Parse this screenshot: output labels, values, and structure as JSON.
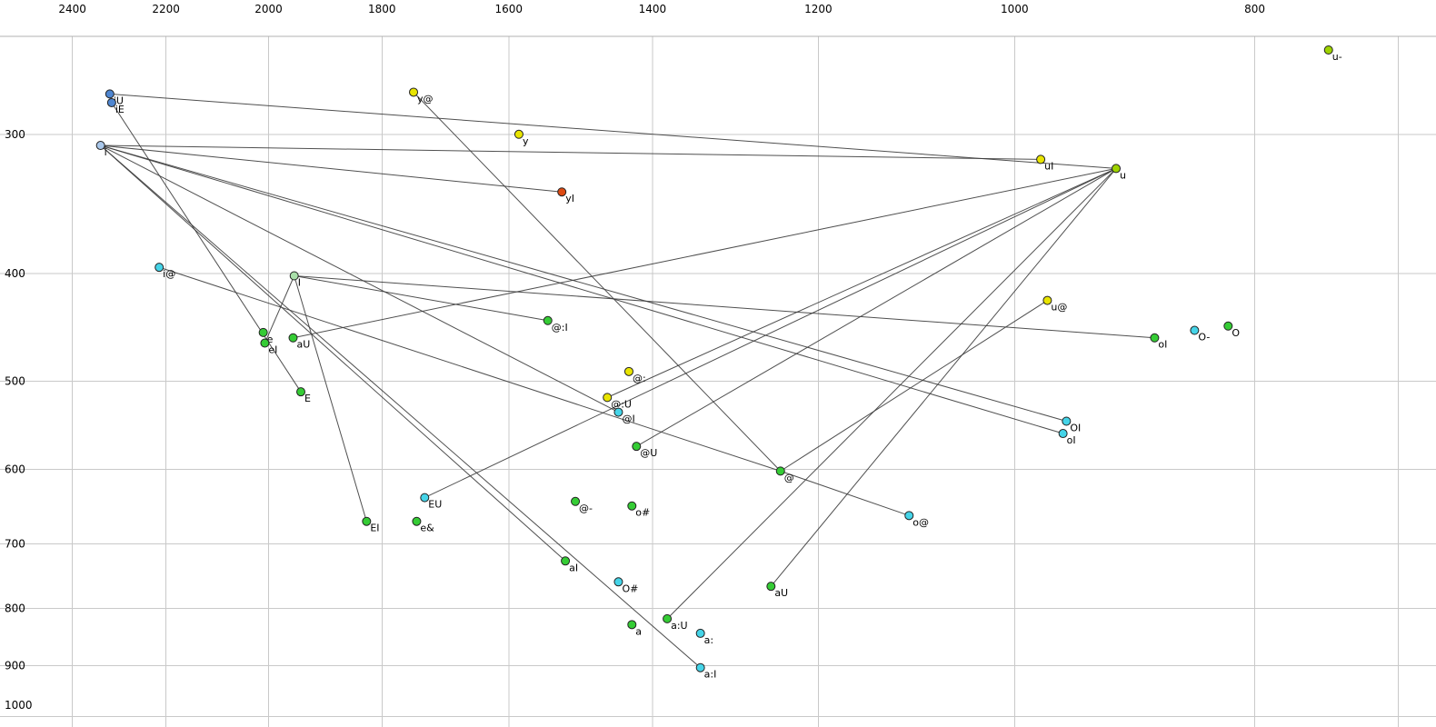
{
  "chart_data": {
    "type": "scatter",
    "title": "",
    "x_axis": {
      "tick_labels": [
        "2400",
        "2200",
        "2000",
        "1800",
        "1600",
        "1400",
        "1200",
        "1000",
        "800"
      ],
      "tick_values": [
        2400,
        2200,
        2000,
        1800,
        1600,
        1400,
        1200,
        1000,
        800
      ],
      "minor_tick_values": [
        700
      ],
      "min": 676,
      "max": 2567,
      "scale": "log",
      "direction": "decreasing-rightward"
    },
    "y_axis": {
      "tick_labels": [
        "300",
        "400",
        "500",
        "600",
        "700",
        "800",
        "900",
        "1000"
      ],
      "tick_values": [
        300,
        400,
        500,
        600,
        700,
        800,
        900,
        1000
      ],
      "min": 245,
      "max": 1022,
      "scale": "log",
      "direction": "increasing-downward"
    },
    "grid": true,
    "points": [
      {
        "label": "iU",
        "f2": 2318,
        "f1": 276,
        "color": "#4f86d0"
      },
      {
        "label": "iE",
        "f2": 2314,
        "f1": 281,
        "color": "#4f86d0"
      },
      {
        "label": "i",
        "f2": 2338,
        "f1": 307,
        "color": "#a9c7ea"
      },
      {
        "label": "y@",
        "f2": 1748,
        "f1": 275,
        "color": "#e8e400"
      },
      {
        "label": "y",
        "f2": 1585,
        "f1": 300,
        "color": "#e8e400"
      },
      {
        "label": "yI",
        "f2": 1523,
        "f1": 338,
        "color": "#dd4a12"
      },
      {
        "label": "uI",
        "f2": 976,
        "f1": 316,
        "color": "#e8e400"
      },
      {
        "label": "u",
        "f2": 910,
        "f1": 322,
        "color": "#9ed300"
      },
      {
        "label": "u-",
        "f2": 747,
        "f1": 252,
        "color": "#9ed300"
      },
      {
        "label": "i@",
        "f2": 2214,
        "f1": 395,
        "color": "#45d4e8"
      },
      {
        "label": "I",
        "f2": 1953,
        "f1": 402,
        "color": "#a9dfa9"
      },
      {
        "label": "u@",
        "f2": 970,
        "f1": 423,
        "color": "#e8e400"
      },
      {
        "label": "@:I",
        "f2": 1543,
        "f1": 441,
        "color": "#35cc35"
      },
      {
        "label": "e",
        "f2": 2010,
        "f1": 452,
        "color": "#35cc35"
      },
      {
        "label": "eI",
        "f2": 2007,
        "f1": 462,
        "color": "#35cc35"
      },
      {
        "label": "aU",
        "f2": 1955,
        "f1": 457,
        "color": "#35cc35"
      },
      {
        "label": "oI",
        "f2": 878,
        "f1": 457,
        "color": "#35cc35"
      },
      {
        "label": "O-",
        "f2": 846,
        "f1": 450,
        "color": "#45d4e8"
      },
      {
        "label": "O",
        "f2": 820,
        "f1": 446,
        "color": "#35cc35"
      },
      {
        "label": "@:",
        "f2": 1431,
        "f1": 490,
        "color": "#e8e400"
      },
      {
        "label": "E",
        "f2": 1941,
        "f1": 511,
        "color": "#35cc35"
      },
      {
        "label": "@:U",
        "f2": 1460,
        "f1": 517,
        "color": "#e8e400"
      },
      {
        "label": "@I",
        "f2": 1445,
        "f1": 533,
        "color": "#45d4e8"
      },
      {
        "label": "OI",
        "f2": 953,
        "f1": 543,
        "color": "#45d4e8"
      },
      {
        "label": "oI",
        "f2": 956,
        "f1": 557,
        "color": "#45d4e8"
      },
      {
        "label": "@U",
        "f2": 1421,
        "f1": 572,
        "color": "#35cc35"
      },
      {
        "label": "@",
        "f2": 1243,
        "f1": 602,
        "color": "#35cc35"
      },
      {
        "label": "EU",
        "f2": 1730,
        "f1": 636,
        "color": "#45d4e8"
      },
      {
        "label": "@-",
        "f2": 1504,
        "f1": 641,
        "color": "#35cc35"
      },
      {
        "label": "o#",
        "f2": 1427,
        "f1": 647,
        "color": "#35cc35"
      },
      {
        "label": "e&",
        "f2": 1743,
        "f1": 668,
        "color": "#35cc35"
      },
      {
        "label": "EI",
        "f2": 1826,
        "f1": 668,
        "color": "#35cc35"
      },
      {
        "label": "o@",
        "f2": 1103,
        "f1": 660,
        "color": "#45d4e8"
      },
      {
        "label": "aI",
        "f2": 1518,
        "f1": 725,
        "color": "#35cc35"
      },
      {
        "label": "O#",
        "f2": 1445,
        "f1": 757,
        "color": "#45d4e8"
      },
      {
        "label": "aU",
        "f2": 1254,
        "f1": 764,
        "color": "#35cc35"
      },
      {
        "label": "a:U",
        "f2": 1381,
        "f1": 817,
        "color": "#35cc35"
      },
      {
        "label": "a",
        "f2": 1427,
        "f1": 827,
        "color": "#35cc35"
      },
      {
        "label": "a:",
        "f2": 1339,
        "f1": 842,
        "color": "#45d4e8"
      },
      {
        "label": "a:I",
        "f2": 1339,
        "f1": 904,
        "color": "#45d4e8"
      }
    ],
    "segments": [
      {
        "name": "iU-u",
        "f2a": 2318,
        "f1a": 276,
        "f2b": 910,
        "f1b": 322
      },
      {
        "name": "iE-E",
        "f2a": 2314,
        "f1a": 281,
        "f2b": 1941,
        "f1b": 511
      },
      {
        "name": "i@-@",
        "f2a": 2214,
        "f1a": 395,
        "f2b": 1243,
        "f1b": 602
      },
      {
        "name": "y@-@",
        "f2a": 1748,
        "f1a": 275,
        "f2b": 1243,
        "f1b": 602
      },
      {
        "name": "yI-i",
        "f2a": 1523,
        "f1a": 338,
        "f2b": 2338,
        "f1b": 307
      },
      {
        "name": "uI-i",
        "f2a": 976,
        "f1a": 316,
        "f2b": 2338,
        "f1b": 307
      },
      {
        "name": "u@-@",
        "f2a": 970,
        "f1a": 423,
        "f2b": 1243,
        "f1b": 602
      },
      {
        "name": "@:I-I",
        "f2a": 1543,
        "f1a": 441,
        "f2b": 1953,
        "f1b": 402
      },
      {
        "name": "eI-I",
        "f2a": 2007,
        "f1a": 462,
        "f2b": 1953,
        "f1b": 402
      },
      {
        "name": "aU-u",
        "f2a": 1955,
        "f1a": 457,
        "f2b": 910,
        "f1b": 322
      },
      {
        "name": "@:U-u",
        "f2a": 1460,
        "f1a": 517,
        "f2b": 910,
        "f1b": 322
      },
      {
        "name": "@I-i",
        "f2a": 1445,
        "f1a": 533,
        "f2b": 2338,
        "f1b": 307
      },
      {
        "name": "@U-u",
        "f2a": 1421,
        "f1a": 572,
        "f2b": 910,
        "f1b": 322
      },
      {
        "name": "EU-u",
        "f2a": 1730,
        "f1a": 636,
        "f2b": 910,
        "f1b": 322
      },
      {
        "name": "EI-I",
        "f2a": 1826,
        "f1a": 668,
        "f2b": 1953,
        "f1b": 402
      },
      {
        "name": "o@-@",
        "f2a": 1103,
        "f1a": 660,
        "f2b": 1243,
        "f1b": 602
      },
      {
        "name": "OI-i",
        "f2a": 953,
        "f1a": 543,
        "f2b": 2338,
        "f1b": 307
      },
      {
        "name": "oI-i",
        "f2a": 956,
        "f1a": 557,
        "f2b": 2338,
        "f1b": 307
      },
      {
        "name": "oI-I",
        "f2a": 878,
        "f1a": 457,
        "f2b": 1953,
        "f1b": 402
      },
      {
        "name": "aI-i",
        "f2a": 1518,
        "f1a": 725,
        "f2b": 2338,
        "f1b": 307
      },
      {
        "name": "aU2-u",
        "f2a": 1254,
        "f1a": 764,
        "f2b": 910,
        "f1b": 322
      },
      {
        "name": "a:U-u",
        "f2a": 1381,
        "f1a": 817,
        "f2b": 910,
        "f1b": 322
      },
      {
        "name": "a:I-i",
        "f2a": 1339,
        "f1a": 904,
        "f2b": 2338,
        "f1b": 307
      }
    ]
  },
  "colors": {
    "background": "#ffffff",
    "grid": "#c9c9c9",
    "header_rule": "#b0b0b0",
    "axis_text": "#000000",
    "trajectory": "#3c3c3c",
    "marker_stroke": "#222222"
  }
}
